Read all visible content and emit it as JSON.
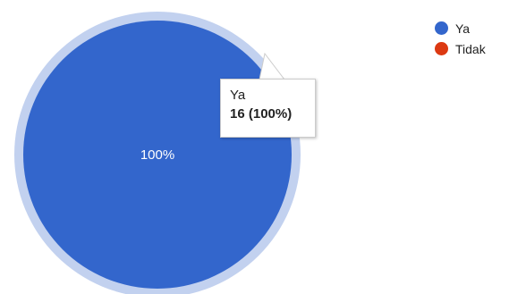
{
  "chart_data": {
    "type": "pie",
    "categories": [
      "Ya",
      "Tidak"
    ],
    "values": [
      16,
      0
    ],
    "colors": [
      "#3366cc",
      "#dc3912"
    ],
    "slice_labels": [
      "100%"
    ],
    "legend_position": "top-right",
    "tooltip": {
      "name": "Ya",
      "value": "16 (100%)"
    }
  },
  "colors": {
    "hover_ring": "#c2d1ef"
  }
}
